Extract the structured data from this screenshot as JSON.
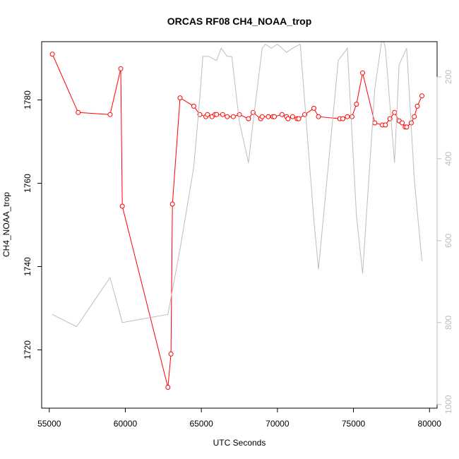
{
  "chart_data": {
    "type": "line",
    "title": "ORCAS RF08 CH4_NOAA_trop",
    "xlabel": "UTC Seconds",
    "ylabel": "CH4_NOAA_trop",
    "xlim": [
      54500,
      80500
    ],
    "ylim": [
      1706,
      1794
    ],
    "x_ticks": [
      55000,
      60000,
      65000,
      70000,
      75000,
      80000
    ],
    "y_ticks": [
      1720,
      1740,
      1760,
      1780
    ],
    "secondary_axis": {
      "side": "right",
      "ylim": [
        1009,
        114
      ],
      "ticks": [
        200,
        400,
        600,
        800,
        1000
      ],
      "color": "#bebebe"
    },
    "grid": false,
    "series": [
      {
        "color": "#ff0000",
        "marker": "open-circle",
        "x": [
          55200,
          56900,
          59000,
          59700,
          59800,
          62800,
          63000,
          63100,
          63600,
          64500,
          64900,
          65300,
          65400,
          65700,
          65900,
          66000,
          66400,
          66700,
          67100,
          67500,
          68100,
          68400,
          68900,
          69000,
          69400,
          69700,
          69800,
          70300,
          70600,
          70700,
          71000,
          71300,
          71400,
          71800,
          72400,
          72700,
          74100,
          74300,
          74600,
          74900,
          75200,
          75600,
          76400,
          76900,
          77100,
          77400,
          77700,
          78000,
          78200,
          78400,
          78500,
          78800,
          79000,
          79200,
          79500
        ],
        "values": [
          1791,
          1777,
          1776.5,
          1787.5,
          1754.5,
          1711,
          1719,
          1755,
          1780.5,
          1778.5,
          1776.5,
          1776,
          1776.5,
          1776,
          1776.5,
          1776.5,
          1776.5,
          1776,
          1776,
          1776.5,
          1775.5,
          1777,
          1775.5,
          1776,
          1776,
          1776,
          1776,
          1776.5,
          1776,
          1775.5,
          1776,
          1775.5,
          1775.5,
          1776.5,
          1778,
          1776,
          1775.5,
          1775.5,
          1776,
          1776,
          1779,
          1786.5,
          1774.5,
          1774,
          1774,
          1775.5,
          1777,
          1775,
          1774.5,
          1773.5,
          1773.5,
          1774.5,
          1776,
          1778.5,
          1781
        ]
      },
      {
        "color": "#bebebe",
        "marker": "none",
        "axis": "right",
        "x": [
          55200,
          56800,
          59000,
          59800,
          62800,
          63000,
          63200,
          63600,
          64500,
          64900,
          65100,
          65500,
          66000,
          66300,
          66700,
          67000,
          67500,
          68100,
          68400,
          69000,
          69200,
          69600,
          70000,
          70300,
          70600,
          71000,
          71500,
          72400,
          72700,
          74000,
          74600,
          75200,
          75600,
          76400,
          76900,
          77100,
          77700,
          78000,
          78500,
          79000,
          79500
        ],
        "values": [
          780,
          810,
          690,
          800,
          780,
          740,
          700,
          620,
          420,
          250,
          150,
          150,
          160,
          130,
          150,
          150,
          310,
          410,
          310,
          130,
          120,
          130,
          120,
          130,
          140,
          130,
          120,
          550,
          670,
          160,
          130,
          540,
          680,
          230,
          100,
          130,
          410,
          170,
          130,
          450,
          650
        ]
      }
    ]
  }
}
